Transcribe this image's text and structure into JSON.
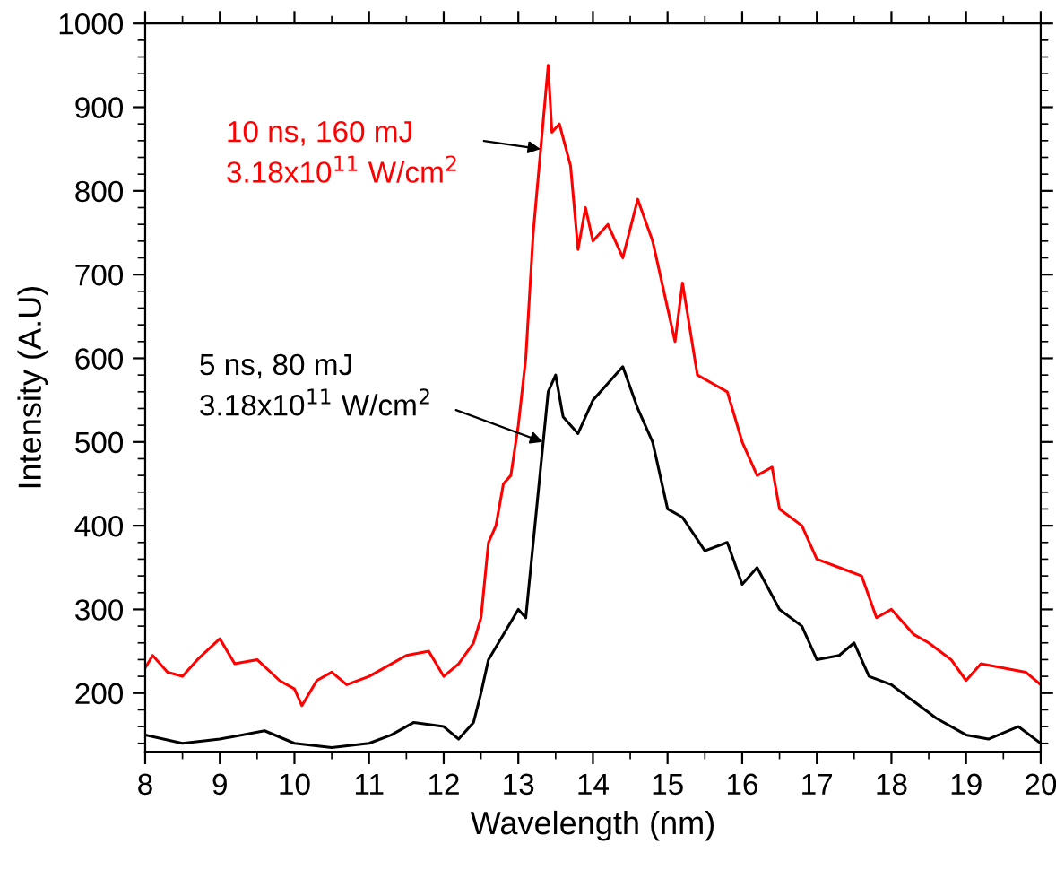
{
  "chart_data": {
    "type": "line",
    "xlabel": "Wavelength (nm)",
    "ylabel": "Intensity (A.U)",
    "xlim": [
      8,
      20
    ],
    "ylim": [
      130,
      1000
    ],
    "xticks": [
      8,
      9,
      10,
      11,
      12,
      13,
      14,
      15,
      16,
      17,
      18,
      19,
      20
    ],
    "yticks": [
      200,
      300,
      400,
      500,
      600,
      700,
      800,
      900,
      1000
    ],
    "grid": false,
    "legend": false,
    "marker": "none",
    "line_style": "solid",
    "series": [
      {
        "color": "#ff0000",
        "x": [
          8.0,
          8.1,
          8.3,
          8.5,
          8.7,
          9.0,
          9.2,
          9.5,
          9.8,
          10.0,
          10.1,
          10.3,
          10.5,
          10.7,
          11.0,
          11.3,
          11.5,
          11.8,
          12.0,
          12.2,
          12.4,
          12.5,
          12.6,
          12.7,
          12.8,
          12.9,
          13.0,
          13.1,
          13.2,
          13.3,
          13.4,
          13.45,
          13.55,
          13.7,
          13.8,
          13.9,
          14.0,
          14.2,
          14.4,
          14.6,
          14.8,
          14.9,
          15.1,
          15.2,
          15.4,
          15.6,
          15.8,
          16.0,
          16.2,
          16.4,
          16.5,
          16.8,
          17.0,
          17.3,
          17.6,
          17.8,
          18.0,
          18.3,
          18.5,
          18.8,
          19.0,
          19.2,
          19.5,
          19.8,
          20.0
        ],
        "values": [
          230,
          245,
          225,
          220,
          240,
          265,
          235,
          240,
          215,
          205,
          185,
          215,
          225,
          210,
          220,
          235,
          245,
          250,
          220,
          235,
          260,
          290,
          380,
          400,
          450,
          460,
          520,
          600,
          750,
          850,
          950,
          870,
          880,
          830,
          730,
          780,
          740,
          760,
          720,
          790,
          740,
          700,
          620,
          690,
          580,
          570,
          560,
          500,
          460,
          470,
          420,
          400,
          360,
          350,
          340,
          290,
          300,
          270,
          260,
          240,
          215,
          235,
          230,
          225,
          210
        ]
      },
      {
        "color": "#000000",
        "x": [
          8.0,
          8.5,
          9.0,
          9.6,
          10.0,
          10.5,
          11.0,
          11.3,
          11.6,
          12.0,
          12.2,
          12.4,
          12.5,
          12.6,
          12.8,
          13.0,
          13.1,
          13.2,
          13.3,
          13.4,
          13.5,
          13.6,
          13.8,
          14.0,
          14.2,
          14.4,
          14.6,
          14.8,
          15.0,
          15.2,
          15.5,
          15.8,
          16.0,
          16.2,
          16.5,
          16.8,
          17.0,
          17.3,
          17.5,
          17.7,
          18.0,
          18.3,
          18.6,
          19.0,
          19.3,
          19.7,
          20.0
        ],
        "values": [
          150,
          140,
          145,
          155,
          140,
          135,
          140,
          150,
          165,
          160,
          145,
          165,
          200,
          240,
          270,
          300,
          290,
          380,
          470,
          560,
          580,
          530,
          510,
          550,
          570,
          590,
          540,
          500,
          420,
          410,
          370,
          380,
          330,
          350,
          300,
          280,
          240,
          245,
          260,
          220,
          210,
          190,
          170,
          150,
          145,
          160,
          140
        ]
      }
    ],
    "annotations": [
      {
        "text": "10 ns, 160 mJ\n3.18x10$^{11}$ W/cm$^{2}$",
        "x": 13.3,
        "y": 850
      },
      {
        "text": "5 ns, 80 mJ\n3.18x10$^{11}$ W/cm$^{2}$",
        "x": 13.33,
        "y": 500
      }
    ]
  }
}
